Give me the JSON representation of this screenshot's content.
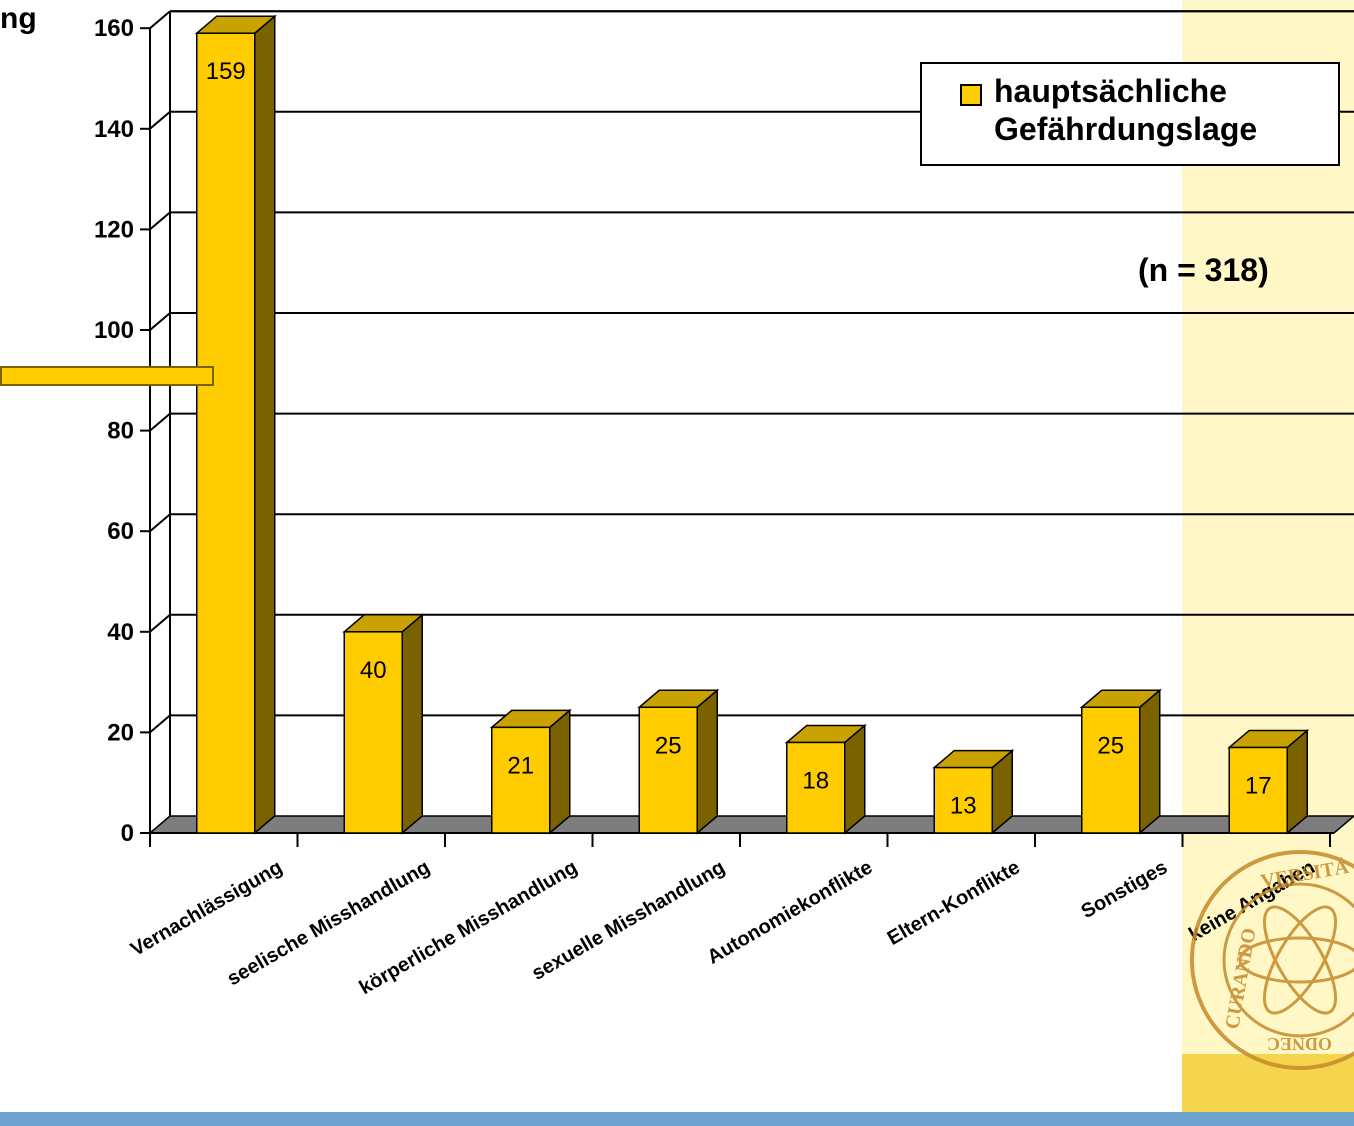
{
  "page": {
    "cut_title": "ng"
  },
  "colors": {
    "bar_front": "#ffcc00",
    "bar_side": "#7a6200",
    "bar_top": "#c9a200",
    "floor": "#7d7d7d",
    "side_band": "#fff8c6",
    "bottom_strip": "#6ea2cf"
  },
  "chart_data": {
    "type": "bar",
    "categories": [
      "Vernachlässigung",
      "seelische Misshandlung",
      "körperliche Misshandlung",
      "sexuelle Misshandlung",
      "Autonomiekonflikte",
      "Eltern-Konflikte",
      "Sonstiges",
      "keine Angaben"
    ],
    "series": [
      {
        "name": "hauptsächliche Gefährdungslage",
        "values": [
          159,
          40,
          21,
          25,
          18,
          13,
          25,
          17
        ]
      }
    ],
    "data_labels": [
      "159",
      "40",
      "21",
      "25",
      "18",
      "13",
      "25",
      "17"
    ],
    "y_ticks": [
      "0",
      "20",
      "40",
      "60",
      "80",
      "100",
      "120",
      "140",
      "160"
    ],
    "ylim": [
      0,
      160
    ],
    "grid": true,
    "legend_position": "top-right",
    "annotation": "(n = 318)"
  },
  "seal": {
    "text_top": "VERSITÄ",
    "text_left": "CURANDO",
    "text_bottom": "ODNEC"
  }
}
